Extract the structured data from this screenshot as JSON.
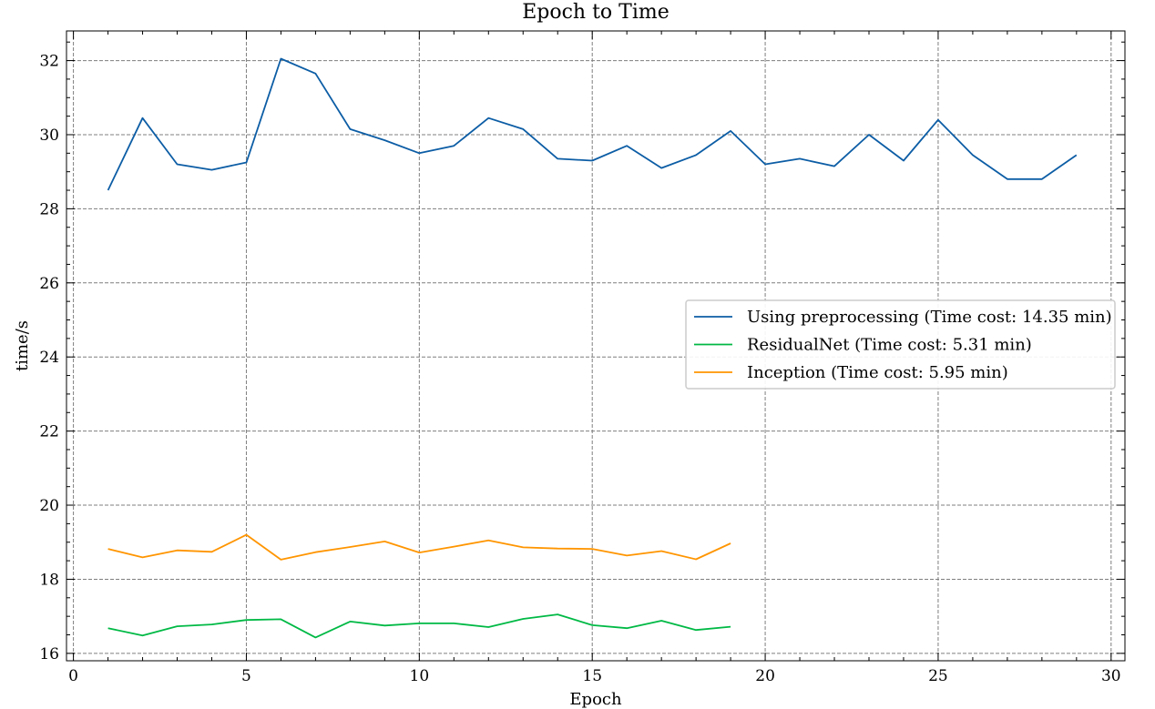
{
  "chart_data": {
    "type": "line",
    "title": "Epoch to Time",
    "xlabel": "Epoch",
    "ylabel": "time/s",
    "xlim": [
      -0.2,
      30.4
    ],
    "ylim": [
      15.8,
      32.8
    ],
    "xticks": [
      0,
      5,
      10,
      15,
      20,
      25,
      30
    ],
    "yticks": [
      16,
      18,
      20,
      22,
      24,
      26,
      28,
      30,
      32
    ],
    "grid": true,
    "legend_position": "center-right",
    "series": [
      {
        "name": "Using preprocessing (Time cost: 14.35 min)",
        "color": "#0c5da5",
        "x": [
          1,
          2,
          3,
          4,
          5,
          6,
          7,
          8,
          9,
          10,
          11,
          12,
          13,
          14,
          15,
          16,
          17,
          18,
          19,
          20,
          21,
          22,
          23,
          24,
          25,
          26,
          27,
          28,
          29
        ],
        "y": [
          28.5,
          30.45,
          29.2,
          29.05,
          29.25,
          32.05,
          31.65,
          30.15,
          29.85,
          29.5,
          29.7,
          30.45,
          30.15,
          29.35,
          29.3,
          29.7,
          29.1,
          29.45,
          30.1,
          29.2,
          29.35,
          29.15,
          30.0,
          29.3,
          30.4,
          29.45,
          28.8,
          28.8,
          29.45
        ]
      },
      {
        "name": "ResidualNet (Time cost: 5.31 min)",
        "color": "#00b945",
        "x": [
          1,
          2,
          3,
          4,
          5,
          6,
          7,
          8,
          9,
          10,
          11,
          12,
          13,
          14,
          15,
          16,
          17,
          18,
          19
        ],
        "y": [
          16.68,
          16.48,
          16.73,
          16.78,
          16.9,
          16.92,
          16.43,
          16.86,
          16.75,
          16.81,
          16.81,
          16.71,
          16.93,
          17.05,
          16.76,
          16.68,
          16.88,
          16.63,
          16.72
        ]
      },
      {
        "name": "Inception (Time cost: 5.95 min)",
        "color": "#ff9500",
        "x": [
          1,
          2,
          3,
          4,
          5,
          6,
          7,
          8,
          9,
          10,
          11,
          12,
          13,
          14,
          15,
          16,
          17,
          18,
          19
        ],
        "y": [
          18.82,
          18.59,
          18.78,
          18.74,
          19.2,
          18.53,
          18.73,
          18.87,
          19.02,
          18.72,
          18.88,
          19.05,
          18.86,
          18.83,
          18.82,
          18.64,
          18.76,
          18.54,
          18.97
        ]
      }
    ]
  }
}
